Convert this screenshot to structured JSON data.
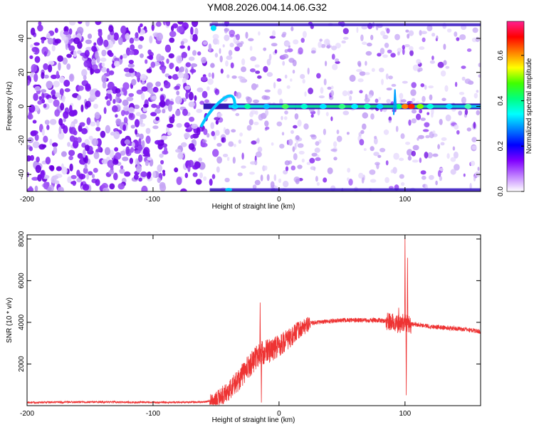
{
  "title": "YM08.2026.004.14.06.G32",
  "chart_data": [
    {
      "type": "heatmap",
      "xlabel": "Height of straight line (km)",
      "ylabel": "Frequency (Hz)",
      "xlim": [
        -200,
        160
      ],
      "ylim": [
        -50,
        50
      ],
      "x_ticks": [
        "-200",
        "-100",
        "0",
        "100"
      ],
      "y_ticks": [
        "40",
        "20",
        "0",
        "-20",
        "-40"
      ],
      "colorbar": {
        "label": "Normalized spectral amplitude",
        "range": [
          0.0,
          0.75
        ],
        "ticks": [
          "0.0",
          "0.2",
          "0.4",
          "0.6"
        ],
        "colors": [
          "#ff2090",
          "#ff0000",
          "#ff8000",
          "#ffff00",
          "#40ff00",
          "#00ff80",
          "#00ffff",
          "#0080ff",
          "#0000ff",
          "#8000ff",
          "#c080ff",
          "#ffffff"
        ]
      },
      "features": [
        {
          "name": "noise-onset",
          "x": -55
        },
        {
          "name": "carrier-line",
          "x_range": [
            -60,
            160
          ],
          "y": 0
        },
        {
          "name": "aliased-upper",
          "x_range": [
            -55,
            160
          ],
          "y": 48
        },
        {
          "name": "aliased-lower",
          "x_range": [
            -55,
            160
          ],
          "y": -49
        }
      ]
    },
    {
      "type": "line",
      "xlabel": "Height of straight line (km)",
      "ylabel": "SNR (10 * v/v)",
      "xlim": [
        -200,
        160
      ],
      "ylim": [
        0,
        8200
      ],
      "x_ticks": [
        "-200",
        "-100",
        "0",
        "100"
      ],
      "y_ticks": [
        "8000",
        "6000",
        "4000",
        "2000"
      ],
      "color": "#ee3333",
      "series": [
        {
          "x": [
            -200,
            -150,
            -100,
            -60,
            -50,
            -40,
            -30,
            -25,
            -20,
            -15,
            -10,
            -5,
            0,
            5,
            10,
            15,
            20,
            25,
            30,
            40,
            50,
            60,
            70,
            80,
            85,
            90,
            95,
            100,
            105,
            110,
            120,
            130,
            140,
            150,
            160
          ],
          "y": [
            150,
            180,
            160,
            170,
            300,
            700,
            1400,
            1800,
            2200,
            2500,
            2600,
            2700,
            2900,
            3100,
            3300,
            3600,
            3800,
            3950,
            4000,
            4050,
            4100,
            4100,
            4100,
            4100,
            4050,
            4000,
            3900,
            4000,
            3900,
            3900,
            3800,
            3750,
            3700,
            3650,
            3550
          ]
        }
      ],
      "spikes": [
        {
          "x": -15,
          "y": 4950
        },
        {
          "x": -14,
          "y": 150
        },
        {
          "x": 95,
          "y": 4700
        },
        {
          "x": 100,
          "y": 8100
        },
        {
          "x": 101,
          "y": 500
        },
        {
          "x": 102,
          "y": 7100
        }
      ]
    }
  ]
}
